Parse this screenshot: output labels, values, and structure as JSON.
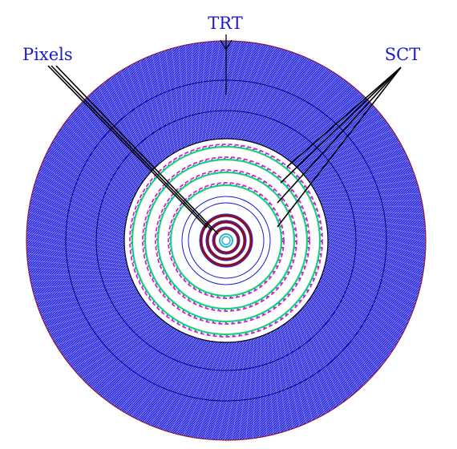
{
  "labels": {
    "trt": "TRT",
    "pixels": "Pixels",
    "sct": "SCT"
  },
  "colors": {
    "label_text": "#1a1acc",
    "trt_fill": "#2a2ae6",
    "trt_hatch": "#ffffff",
    "trt_boundary_rings": "#00006a",
    "outer_edge": "#8a1a3a",
    "sct_green": "#19d27a",
    "sct_magenta": "#d81bd8",
    "sct_blue_dash": "#1a1acc",
    "pixel_dark_red": "#8a0a2a",
    "pixel_blue": "#1a1acc",
    "beampipe_cyan": "#29b6c9",
    "leader_lines": "#000000"
  },
  "sct_layer_count": 4,
  "pixel_layer_count": 3
}
